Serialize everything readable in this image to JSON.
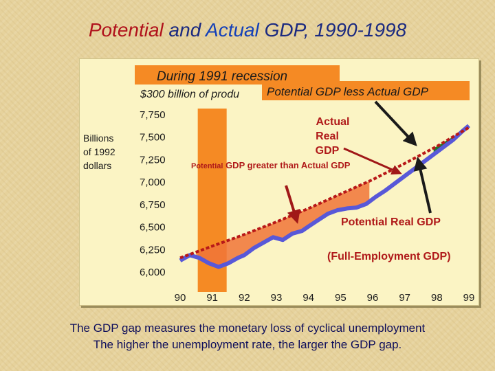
{
  "title": {
    "part1": "Potential",
    "part2": " and ",
    "part3": "Actual",
    "part4": " GDP,  1990-1998"
  },
  "caption": {
    "line1": "The  GDP gap measures the monetary loss of cyclical unemployment",
    "line2": "The higher the unemployment rate, the larger the GDP gap."
  },
  "colors": {
    "potential_line": "#b81818",
    "actual_line": "#5858d8",
    "recession_band": "#f58a24",
    "gap_fill_recession": "#f07438",
    "gap_fill_boom": "#1a7a2a",
    "arrow": "#1a1a1a",
    "text_red": "#b01a1a",
    "text_blue": "#1a1a8a"
  },
  "chart_data": {
    "type": "line",
    "title": "",
    "ylabel": "Billions of 1992 dollars",
    "ylabel_lines": [
      "Billions",
      "of 1992",
      "dollars"
    ],
    "x_ticks": [
      "90",
      "91",
      "92",
      "93",
      "94",
      "95",
      "96",
      "97",
      "98",
      "99"
    ],
    "y_ticks": [
      "7,750",
      "7,500",
      "7,250",
      "7,000",
      "6,750",
      "6,500",
      "6,250",
      "6,000"
    ],
    "y_tick_values": [
      7750,
      7500,
      7250,
      7000,
      6750,
      6500,
      6250,
      6000
    ],
    "ylim": [
      6000,
      7780
    ],
    "xlim": [
      90,
      99
    ],
    "recession_band": [
      90.55,
      91.45
    ],
    "series": [
      {
        "name": "Potential Real GDP",
        "values": [
          [
            90.0,
            6150
          ],
          [
            91.0,
            6280
          ],
          [
            92.0,
            6410
          ],
          [
            93.0,
            6550
          ],
          [
            94.0,
            6700
          ],
          [
            95.0,
            6860
          ],
          [
            96.0,
            7020
          ],
          [
            97.0,
            7200
          ],
          [
            98.0,
            7390
          ],
          [
            99.0,
            7600
          ]
        ]
      },
      {
        "name": "Actual Real GDP",
        "values": [
          [
            90.0,
            6120
          ],
          [
            90.3,
            6180
          ],
          [
            90.6,
            6150
          ],
          [
            90.9,
            6090
          ],
          [
            91.2,
            6050
          ],
          [
            91.5,
            6090
          ],
          [
            91.8,
            6150
          ],
          [
            92.0,
            6180
          ],
          [
            92.3,
            6260
          ],
          [
            92.6,
            6320
          ],
          [
            92.9,
            6380
          ],
          [
            93.2,
            6350
          ],
          [
            93.5,
            6420
          ],
          [
            93.8,
            6450
          ],
          [
            94.0,
            6500
          ],
          [
            94.3,
            6570
          ],
          [
            94.6,
            6640
          ],
          [
            94.9,
            6680
          ],
          [
            95.2,
            6700
          ],
          [
            95.5,
            6710
          ],
          [
            95.8,
            6750
          ],
          [
            96.1,
            6830
          ],
          [
            96.4,
            6900
          ],
          [
            96.7,
            6980
          ],
          [
            97.0,
            7060
          ],
          [
            97.3,
            7140
          ],
          [
            97.6,
            7220
          ],
          [
            97.9,
            7300
          ],
          [
            98.2,
            7380
          ],
          [
            98.5,
            7460
          ],
          [
            98.8,
            7560
          ],
          [
            99.0,
            7620
          ]
        ]
      }
    ],
    "annotations": {
      "recession_line1": "During 1991 recession",
      "recession_line2": "$300 billion of produ",
      "gap_less": "Potential GDP less Actual GDP",
      "actual_line1": "Actual",
      "actual_line2": "Real",
      "actual_line3": "GDP",
      "gap_greater_part1": "Potential",
      "gap_greater_part2": "  GDP greater than  Actual GDP",
      "potential_label": "Potential  Real  GDP",
      "full_employment": "(Full-Employment  GDP)"
    }
  }
}
